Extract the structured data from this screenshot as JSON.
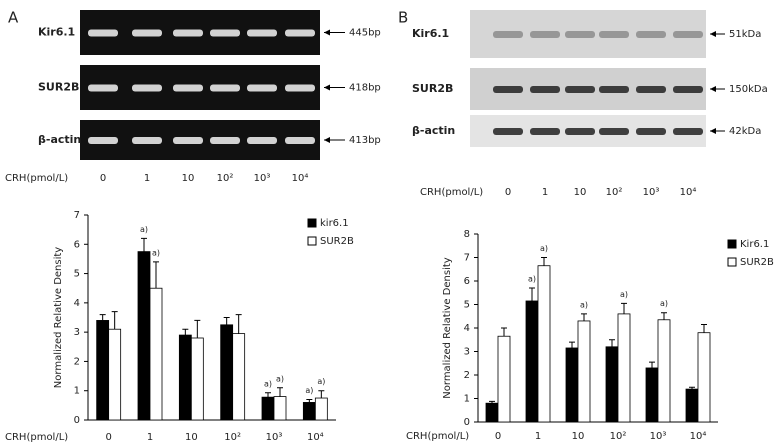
{
  "panel_a": {
    "letter": "A",
    "rows": [
      "Kir6.1",
      "SUR2B",
      "β-actin"
    ],
    "sizes": [
      "445bp",
      "418bp",
      "413bp"
    ],
    "x_label": "CRH(pmol/L)",
    "lanes": [
      "0",
      "1",
      "10",
      "10²",
      "10³",
      "10⁴"
    ]
  },
  "panel_b": {
    "letter": "B",
    "rows": [
      "Kir6.1",
      "SUR2B",
      "β-actin"
    ],
    "sizes": [
      "51kDa",
      "150kDa",
      "42kDa"
    ],
    "x_label": "CRH(pmol/L)",
    "lanes": [
      "0",
      "1",
      "10",
      "10²",
      "10³",
      "10⁴"
    ]
  },
  "chart_data": [
    {
      "type": "bar",
      "y_label": "Normalized Relative Density",
      "x_label": "CRH(pmol/L)",
      "categories": [
        "0",
        "1",
        "10",
        "10²",
        "10³",
        "10⁴"
      ],
      "series": [
        {
          "name": "kir6.1",
          "color": "#000000",
          "values": [
            3.4,
            5.75,
            2.9,
            3.25,
            0.78,
            0.6
          ],
          "errors": [
            0.2,
            0.45,
            0.2,
            0.25,
            0.15,
            0.1
          ],
          "significance": [
            null,
            "a)",
            null,
            null,
            "a)",
            "a)"
          ]
        },
        {
          "name": "SUR2B",
          "color": "#ffffff",
          "values": [
            3.1,
            4.5,
            2.8,
            2.95,
            0.8,
            0.75
          ],
          "errors": [
            0.6,
            0.9,
            0.6,
            0.65,
            0.3,
            0.25
          ],
          "significance": [
            null,
            "a)",
            null,
            null,
            "a)",
            "a)"
          ]
        }
      ],
      "ylim": [
        0,
        7
      ],
      "yticks": [
        0,
        1,
        2,
        3,
        4,
        5,
        6,
        7
      ]
    },
    {
      "type": "bar",
      "y_label": "Normalized Relative Density",
      "x_label": "CRH(pmol/L)",
      "categories": [
        "0",
        "1",
        "10",
        "10²",
        "10³",
        "10⁴"
      ],
      "series": [
        {
          "name": "Kir6.1",
          "color": "#000000",
          "values": [
            0.8,
            5.15,
            3.15,
            3.2,
            2.3,
            1.4
          ],
          "errors": [
            0.08,
            0.55,
            0.25,
            0.3,
            0.25,
            0.08
          ],
          "significance": [
            null,
            "a)",
            null,
            null,
            null,
            null
          ]
        },
        {
          "name": "SUR2B",
          "color": "#ffffff",
          "values": [
            3.65,
            6.65,
            4.3,
            4.6,
            4.35,
            3.8
          ],
          "errors": [
            0.35,
            0.35,
            0.3,
            0.45,
            0.3,
            0.35
          ],
          "significance": [
            null,
            "a)",
            "a)",
            "a)",
            "a)",
            null
          ]
        }
      ],
      "ylim": [
        0,
        8
      ],
      "yticks": [
        0,
        1,
        2,
        3,
        4,
        5,
        6,
        7,
        8
      ]
    }
  ]
}
